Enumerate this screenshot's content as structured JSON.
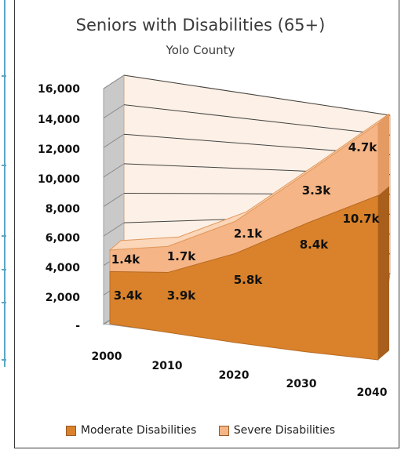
{
  "chart_data": {
    "type": "area",
    "title": "Seniors with Disabilities (65+)",
    "subtitle": "Yolo County",
    "categories": [
      "2000",
      "2010",
      "2020",
      "2030",
      "2040"
    ],
    "stacked": true,
    "series": [
      {
        "name": "Moderate Disabilities",
        "values": [
          3400,
          3900,
          5800,
          8400,
          10700
        ],
        "labels": [
          "3.4k",
          "3.9k",
          "5.8k",
          "8.4k",
          "10.7k"
        ],
        "color": "#d9822b"
      },
      {
        "name": "Severe Disabilities",
        "values": [
          1400,
          1700,
          2100,
          3300,
          4700
        ],
        "labels": [
          "1.4k",
          "1.7k",
          "2.1k",
          "3.3k",
          "4.7k"
        ],
        "color": "#f6b586"
      }
    ],
    "y_ticks": [
      "16,000",
      "14,000",
      "12,000",
      "10,000",
      "8,000",
      "6,000",
      "4,000",
      "2,000",
      "-"
    ],
    "ylim": [
      0,
      16000
    ],
    "grid": true,
    "legend_position": "bottom",
    "view": "3d"
  }
}
